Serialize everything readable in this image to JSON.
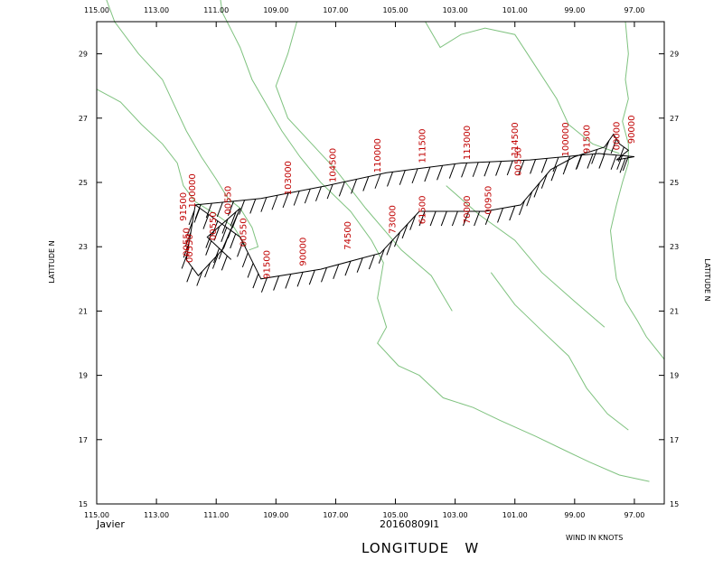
{
  "map": {
    "storm_name": "Javier",
    "datetime": "20160809I1",
    "x_axis_title": "LONGITUDE   W",
    "y_axis_title_left": "LATITUDE   N",
    "y_axis_title_right": "LATITUDE   N",
    "wind_units_note": "WIND IN KNOTS",
    "lon_ticks": [
      "115.00",
      "113.00",
      "111.00",
      "109.00",
      "107.00",
      "105.00",
      "103.00",
      "101.00",
      "99.00",
      "97.00"
    ],
    "lat_ticks": [
      "29",
      "27",
      "25",
      "23",
      "21",
      "19",
      "17",
      "15"
    ],
    "colors": {
      "coast": "#7fc27f",
      "track": "#000000",
      "labels": "#c00000",
      "frame": "#000000"
    },
    "altitude_labels": [
      {
        "text": "110000",
        "lon": -105.5,
        "lat": 25.3
      },
      {
        "text": "111500",
        "lon": -104.0,
        "lat": 25.6
      },
      {
        "text": "113000",
        "lon": -102.5,
        "lat": 25.7
      },
      {
        "text": "114500",
        "lon": -100.9,
        "lat": 25.8
      },
      {
        "text": "104500",
        "lon": -107.0,
        "lat": 25.0
      },
      {
        "text": "103000",
        "lon": -108.5,
        "lat": 24.6
      },
      {
        "text": "100000",
        "lon": -111.7,
        "lat": 24.2
      },
      {
        "text": "91500",
        "lon": -112.0,
        "lat": 23.8
      },
      {
        "text": "90000",
        "lon": -108.0,
        "lat": 22.4
      },
      {
        "text": "91500",
        "lon": -109.2,
        "lat": 22.0
      },
      {
        "text": "74500",
        "lon": -106.5,
        "lat": 22.9
      },
      {
        "text": "73000",
        "lon": -105.0,
        "lat": 23.4
      },
      {
        "text": "61500",
        "lon": -104.0,
        "lat": 23.7
      },
      {
        "text": "70000",
        "lon": -102.5,
        "lat": 23.7
      },
      {
        "text": "00950",
        "lon": -101.8,
        "lat": 24.0
      },
      {
        "text": "00550",
        "lon": -100.8,
        "lat": 25.2
      },
      {
        "text": "00550",
        "lon": -110.5,
        "lat": 24.0
      },
      {
        "text": "00550",
        "lon": -111.0,
        "lat": 23.2
      },
      {
        "text": "00550",
        "lon": -111.8,
        "lat": 22.5
      },
      {
        "text": "00550",
        "lon": -111.9,
        "lat": 22.7
      },
      {
        "text": "00550",
        "lon": -110.0,
        "lat": 23.0
      },
      {
        "text": "100000",
        "lon": -99.2,
        "lat": 25.8
      },
      {
        "text": "91500",
        "lon": -98.5,
        "lat": 25.9
      },
      {
        "text": "00000",
        "lon": -97.5,
        "lat": 26.0
      },
      {
        "text": "90000",
        "lon": -97.0,
        "lat": 26.2
      }
    ],
    "legs": [
      [
        [
          -97.0,
          25.8
        ],
        [
          -98.2,
          25.9
        ],
        [
          -100.5,
          25.7
        ],
        [
          -102.8,
          25.6
        ],
        [
          -105.3,
          25.3
        ],
        [
          -107.3,
          24.9
        ],
        [
          -109.5,
          24.5
        ],
        [
          -111.7,
          24.3
        ]
      ],
      [
        [
          -111.7,
          24.3
        ],
        [
          -110.2,
          23.3
        ],
        [
          -109.5,
          22.0
        ],
        [
          -107.5,
          22.3
        ],
        [
          -105.5,
          22.8
        ],
        [
          -104.2,
          24.1
        ],
        [
          -102.0,
          24.1
        ],
        [
          -100.8,
          24.3
        ],
        [
          -99.8,
          25.4
        ],
        [
          -99.0,
          25.8
        ],
        [
          -98.0,
          26.1
        ]
      ],
      [
        [
          -98.0,
          26.1
        ],
        [
          -97.7,
          26.5
        ],
        [
          -97.5,
          26.2
        ],
        [
          -97.2,
          26.0
        ],
        [
          -97.6,
          25.7
        ],
        [
          -97.0,
          25.8
        ]
      ],
      [
        [
          -111.7,
          24.3
        ],
        [
          -112.0,
          22.6
        ],
        [
          -111.6,
          22.1
        ],
        [
          -110.8,
          22.9
        ],
        [
          -110.2,
          24.2
        ],
        [
          -111.3,
          23.3
        ],
        [
          -110.5,
          22.6
        ]
      ]
    ]
  }
}
